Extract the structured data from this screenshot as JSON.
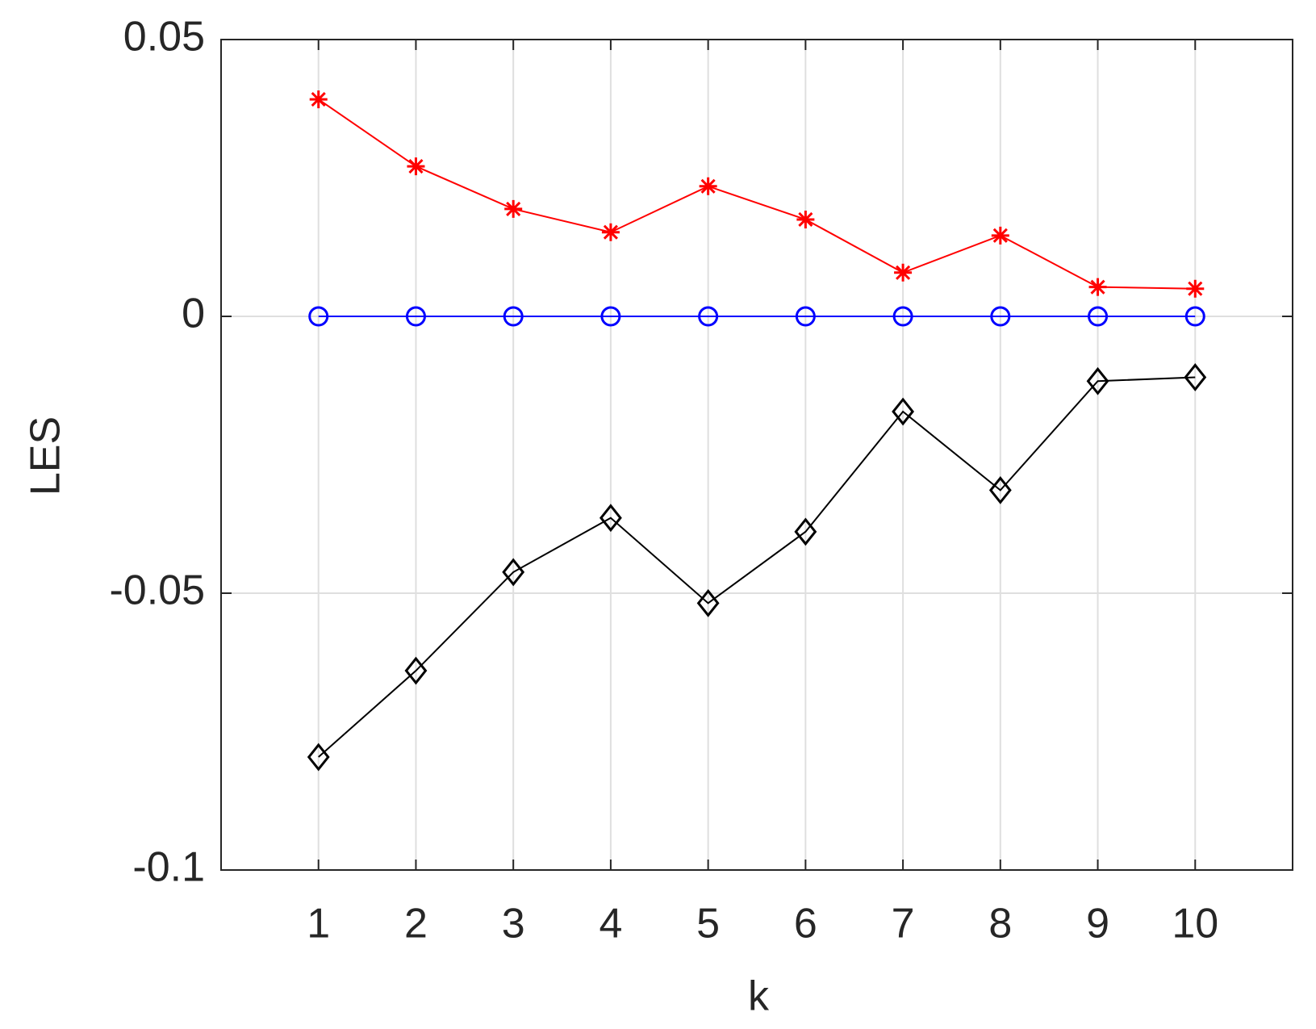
{
  "chart_data": {
    "type": "line",
    "x_label": "k",
    "y_label": "LES",
    "x": [
      1,
      2,
      3,
      4,
      5,
      6,
      7,
      8,
      9,
      10
    ],
    "series": [
      {
        "color": "#ff0000",
        "marker": "asterisk",
        "values": [
          0.0392,
          0.0271,
          0.0194,
          0.0152,
          0.0235,
          0.0175,
          0.0079,
          0.0146,
          0.0053,
          0.005
        ]
      },
      {
        "color": "#0000ff",
        "marker": "circle",
        "values": [
          0,
          0,
          0,
          0,
          0,
          0,
          0,
          0,
          0,
          0
        ]
      },
      {
        "color": "#000000",
        "marker": "diamond",
        "values": [
          -0.0796,
          -0.064,
          -0.0462,
          -0.0364,
          -0.0518,
          -0.0389,
          -0.0172,
          -0.0314,
          -0.0117,
          -0.011
        ]
      }
    ],
    "xlim": [
      0,
      11
    ],
    "xticks": [
      1,
      2,
      3,
      4,
      5,
      6,
      7,
      8,
      9,
      10
    ],
    "ylim": [
      -0.1,
      0.05
    ],
    "yticks": [
      -0.1,
      -0.05,
      0,
      0.05
    ],
    "grid": true
  }
}
